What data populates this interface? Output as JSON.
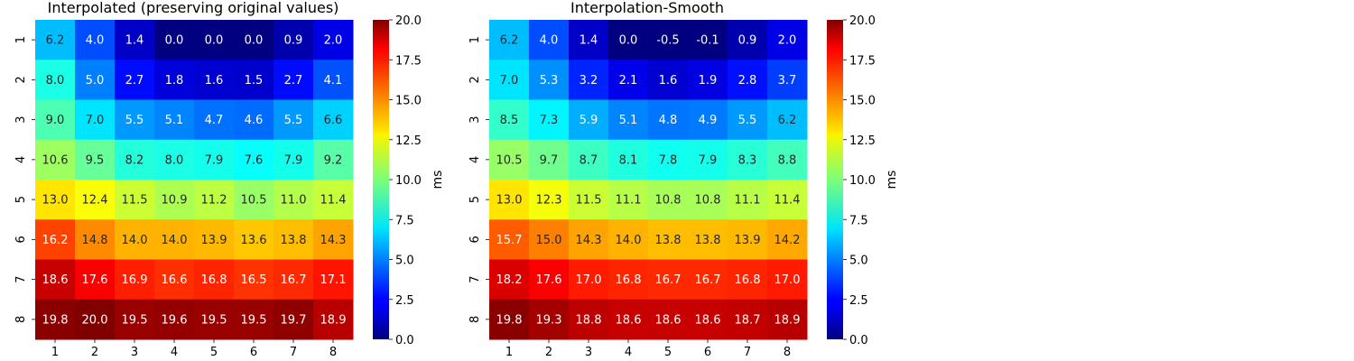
{
  "chart_data": [
    {
      "type": "heatmap",
      "title": "Interpolated (preserving original values)",
      "x_categories": [
        "1",
        "2",
        "3",
        "4",
        "5",
        "6",
        "7",
        "8"
      ],
      "y_categories": [
        "1",
        "2",
        "3",
        "4",
        "5",
        "6",
        "7",
        "8"
      ],
      "values": [
        [
          6.2,
          4.0,
          1.4,
          0.0,
          0.0,
          0.0,
          0.9,
          2.0
        ],
        [
          8.0,
          5.0,
          2.7,
          1.8,
          1.6,
          1.5,
          2.7,
          4.1
        ],
        [
          9.0,
          7.0,
          5.5,
          5.1,
          4.7,
          4.6,
          5.5,
          6.6
        ],
        [
          10.6,
          9.5,
          8.2,
          8.0,
          7.9,
          7.6,
          7.9,
          9.2
        ],
        [
          13.0,
          12.4,
          11.5,
          10.9,
          11.2,
          10.5,
          11.0,
          11.4
        ],
        [
          16.2,
          14.8,
          14.0,
          14.0,
          13.9,
          13.6,
          13.8,
          14.3
        ],
        [
          18.6,
          17.6,
          16.9,
          16.6,
          16.8,
          16.5,
          16.7,
          17.1
        ],
        [
          19.8,
          20.0,
          19.5,
          19.6,
          19.5,
          19.5,
          19.7,
          18.9
        ]
      ],
      "value_labels": [
        [
          "6.2",
          "4.0",
          "1.4",
          "0.0",
          "0.0",
          "0.0",
          "0.9",
          "2.0"
        ],
        [
          "8.0",
          "5.0",
          "2.7",
          "1.8",
          "1.6",
          "1.5",
          "2.7",
          "4.1"
        ],
        [
          "9.0",
          "7.0",
          "5.5",
          "5.1",
          "4.7",
          "4.6",
          "5.5",
          "6.6"
        ],
        [
          "10.6",
          "9.5",
          "8.2",
          "8.0",
          "7.9",
          "7.6",
          "7.9",
          "9.2"
        ],
        [
          "13.0",
          "12.4",
          "11.5",
          "10.9",
          "11.2",
          "10.5",
          "11.0",
          "11.4"
        ],
        [
          "16.2",
          "14.8",
          "14.0",
          "14.0",
          "13.9",
          "13.6",
          "13.8",
          "14.3"
        ],
        [
          "18.6",
          "17.6",
          "16.9",
          "16.6",
          "16.8",
          "16.5",
          "16.7",
          "17.1"
        ],
        [
          "19.8",
          "20.0",
          "19.5",
          "19.6",
          "19.5",
          "19.5",
          "19.7",
          "18.9"
        ]
      ],
      "colormap": "jet",
      "vmin": 0,
      "vmax": 20,
      "colorbar_label": "ms",
      "colorbar_ticks": [
        "0.0",
        "2.5",
        "5.0",
        "7.5",
        "10.0",
        "12.5",
        "15.0",
        "17.5",
        "20.0"
      ],
      "colorbar_tick_values": [
        0,
        2.5,
        5,
        7.5,
        10,
        12.5,
        15,
        17.5,
        20
      ]
    },
    {
      "type": "heatmap",
      "title": "Interpolation-Smooth",
      "x_categories": [
        "1",
        "2",
        "3",
        "4",
        "5",
        "6",
        "7",
        "8"
      ],
      "y_categories": [
        "1",
        "2",
        "3",
        "4",
        "5",
        "6",
        "7",
        "8"
      ],
      "values": [
        [
          6.2,
          4.0,
          1.4,
          0.0,
          -0.5,
          -0.1,
          0.9,
          2.0
        ],
        [
          7.0,
          5.3,
          3.2,
          2.1,
          1.6,
          1.9,
          2.8,
          3.7
        ],
        [
          8.5,
          7.3,
          5.9,
          5.1,
          4.8,
          4.9,
          5.5,
          6.2
        ],
        [
          10.5,
          9.7,
          8.7,
          8.1,
          7.8,
          7.9,
          8.3,
          8.8
        ],
        [
          13.0,
          12.3,
          11.5,
          11.1,
          10.8,
          10.8,
          11.1,
          11.4
        ],
        [
          15.7,
          15.0,
          14.3,
          14.0,
          13.8,
          13.8,
          13.9,
          14.2
        ],
        [
          18.2,
          17.6,
          17.0,
          16.8,
          16.7,
          16.7,
          16.8,
          17.0
        ],
        [
          19.8,
          19.3,
          18.8,
          18.6,
          18.6,
          18.6,
          18.7,
          18.9
        ]
      ],
      "value_labels": [
        [
          "6.2",
          "4.0",
          "1.4",
          "0.0",
          "-0.5",
          "-0.1",
          "0.9",
          "2.0"
        ],
        [
          "7.0",
          "5.3",
          "3.2",
          "2.1",
          "1.6",
          "1.9",
          "2.8",
          "3.7"
        ],
        [
          "8.5",
          "7.3",
          "5.9",
          "5.1",
          "4.8",
          "4.9",
          "5.5",
          "6.2"
        ],
        [
          "10.5",
          "9.7",
          "8.7",
          "8.1",
          "7.8",
          "7.9",
          "8.3",
          "8.8"
        ],
        [
          "13.0",
          "12.3",
          "11.5",
          "11.1",
          "10.8",
          "10.8",
          "11.1",
          "11.4"
        ],
        [
          "15.7",
          "15.0",
          "14.3",
          "14.0",
          "13.8",
          "13.8",
          "13.9",
          "14.2"
        ],
        [
          "18.2",
          "17.6",
          "17.0",
          "16.8",
          "16.7",
          "16.7",
          "16.8",
          "17.0"
        ],
        [
          "19.8",
          "19.3",
          "18.8",
          "18.6",
          "18.6",
          "18.6",
          "18.7",
          "18.9"
        ]
      ],
      "colormap": "jet",
      "vmin": 0,
      "vmax": 20,
      "colorbar_label": "ms",
      "colorbar_ticks": [
        "0.0",
        "2.5",
        "5.0",
        "7.5",
        "10.0",
        "12.5",
        "15.0",
        "17.5",
        "20.0"
      ],
      "colorbar_tick_values": [
        0,
        2.5,
        5,
        7.5,
        10,
        12.5,
        15,
        17.5,
        20
      ]
    }
  ]
}
